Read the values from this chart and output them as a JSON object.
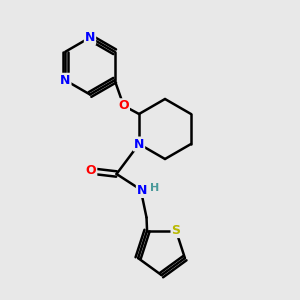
{
  "bg_color": "#e8e8e8",
  "bond_color": "#000000",
  "bond_width": 1.8,
  "atom_colors": {
    "N": "#0000ff",
    "O": "#ff0000",
    "S": "#b8b800",
    "C": "#000000",
    "H": "#4a9a9a"
  },
  "font_size": 9,
  "fig_size": [
    3.0,
    3.0
  ],
  "dpi": 100
}
